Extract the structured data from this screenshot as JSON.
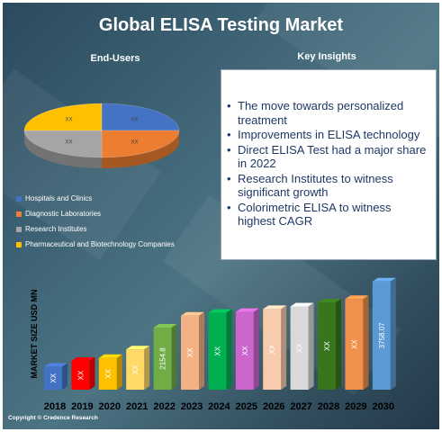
{
  "title": "Global ELISA Testing Market",
  "end_users_title": "End-Users",
  "insights_title": "Key Insights",
  "insights": [
    "The move towards personalized treatment",
    "Improvements in ELISA technology",
    "Direct ELISA Test had a major share in 2022",
    "Research Institutes to witness significant growth",
    "Colorimetric ELISA to witness highest CAGR"
  ],
  "copyright": "Copyright © Credence Research",
  "chart_data": [
    {
      "type": "pie",
      "categories": [
        "Hospitals and Clinics",
        "Diagnostic Laboratories",
        "Research Institutes",
        "Pharmaceutical and Biotechnology Companies"
      ],
      "values": [
        25,
        25,
        25,
        25
      ],
      "data_labels": [
        "XX",
        "XX",
        "XX",
        "XX"
      ],
      "colors": [
        "#4472c4",
        "#ed7d31",
        "#a5a5a5",
        "#ffc000"
      ],
      "legend": "bottom-left"
    },
    {
      "type": "bar",
      "ylabel": "MARKET SIZE USD MN",
      "categories": [
        "2018",
        "2019",
        "2020",
        "2021",
        "2022",
        "2023",
        "2024",
        "2025",
        "2026",
        "2027",
        "2028",
        "2029",
        "2030"
      ],
      "values": [
        800,
        1000,
        1100,
        1400,
        2154.8,
        2570,
        2670,
        2700,
        2800,
        2890,
        3030,
        3150,
        3758.07
      ],
      "data_labels": [
        "XX",
        "XX",
        "XX",
        "XX",
        "2154.8",
        "XX",
        "XX",
        "XX",
        "XX",
        "XX",
        "XX",
        "XX",
        "3758.07"
      ],
      "colors": [
        "#4472c4",
        "#ff0000",
        "#ffc000",
        "#ffd966",
        "#70ad47",
        "#f4b183",
        "#00b050",
        "#cc66cc",
        "#f8cbad",
        "#d9d9d9",
        "#38761d",
        "#f0904a",
        "#5b9bd5"
      ],
      "ylim": [
        0,
        4000
      ],
      "grid": false
    }
  ]
}
